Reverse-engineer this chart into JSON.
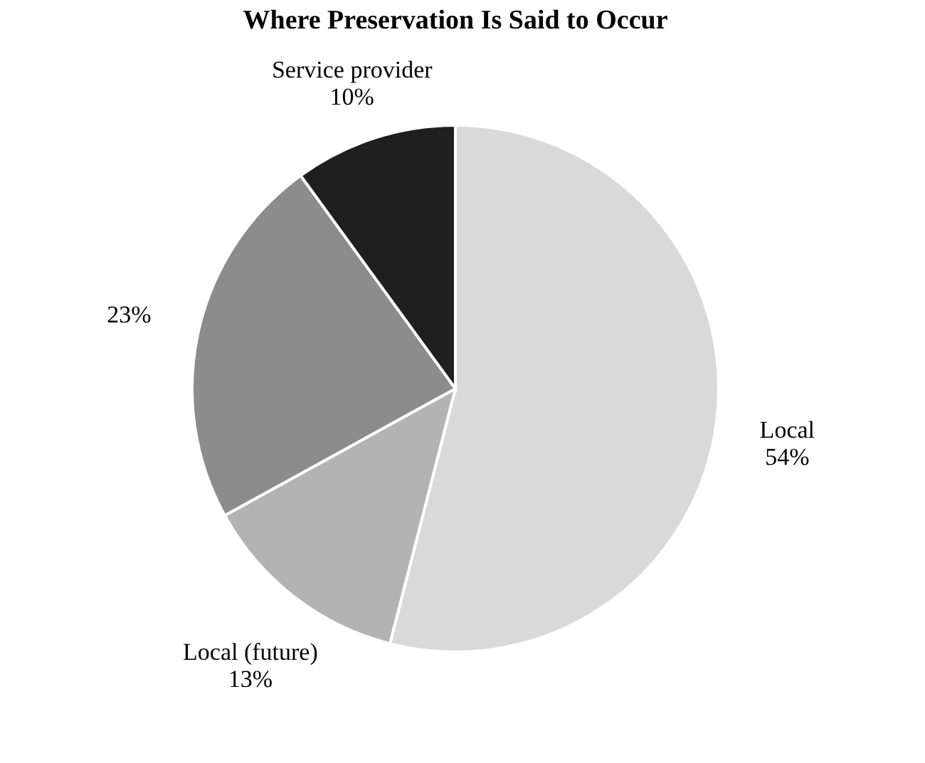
{
  "chart_data": {
    "type": "pie",
    "title": "Where Preservation Is Said to Occur",
    "categories": [
      "Local",
      "Local (future)",
      null,
      "Service provider"
    ],
    "values": [
      54,
      13,
      23,
      10
    ],
    "colors": [
      "#d9d9d9",
      "#b3b3b3",
      "#8c8c8c",
      "#1f1f1f"
    ],
    "value_labels": [
      "54%",
      "13%",
      "23%",
      "10%"
    ],
    "legend": false
  }
}
